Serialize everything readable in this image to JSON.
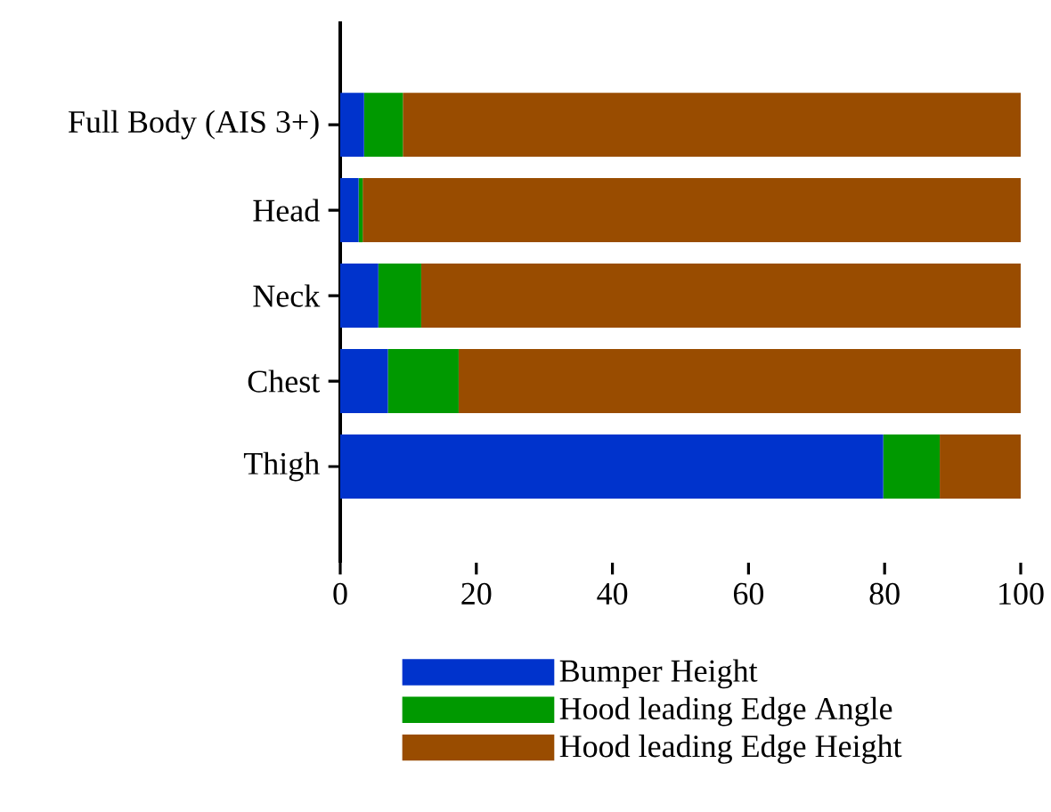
{
  "chart_data": {
    "type": "bar",
    "orientation": "horizontal",
    "stacked": true,
    "categories": [
      "Full Body (AIS 3+)",
      "Head",
      "Neck",
      "Chest",
      "Thigh"
    ],
    "series": [
      {
        "name": "Bumper Height",
        "color": "#0033cc",
        "values": [
          3.5,
          2.7,
          5.6,
          7.0,
          79.8
        ]
      },
      {
        "name": "Hood leading Edge Angle",
        "color": "#009900",
        "values": [
          5.7,
          0.6,
          6.3,
          10.4,
          8.3
        ]
      },
      {
        "name": "Hood leading Edge Height",
        "color": "#994c00",
        "values": [
          90.8,
          96.7,
          88.1,
          82.6,
          11.9
        ]
      }
    ],
    "xlim": [
      0,
      100
    ],
    "xticks": [
      0,
      20,
      40,
      60,
      80,
      100
    ],
    "grid": false,
    "legend": "bottom"
  }
}
